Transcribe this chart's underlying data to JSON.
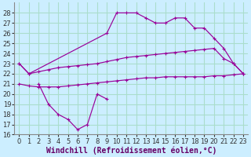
{
  "background_color": "#cceeff",
  "grid_color": "#aaddcc",
  "line_color": "#990099",
  "xlim": [
    -0.5,
    23.5
  ],
  "ylim": [
    16,
    29
  ],
  "xticks": [
    0,
    1,
    2,
    3,
    4,
    5,
    6,
    7,
    8,
    9,
    10,
    11,
    12,
    13,
    14,
    15,
    16,
    17,
    18,
    19,
    20,
    21,
    22,
    23
  ],
  "yticks": [
    16,
    17,
    18,
    19,
    20,
    21,
    22,
    23,
    24,
    25,
    26,
    27,
    28
  ],
  "xlabel": "Windchill (Refroidissement éolien,°C)",
  "xlabel_fontsize": 7.0,
  "tick_fontsize": 6.0,
  "line1": {
    "x": [
      0,
      1,
      9,
      10,
      11,
      12,
      13,
      14,
      15,
      16,
      17,
      18,
      19,
      20,
      21,
      22,
      23
    ],
    "y": [
      23,
      22,
      26,
      28,
      28,
      28,
      27.5,
      27,
      27,
      27.5,
      27.5,
      26.5,
      26.5,
      25.5,
      24.5,
      23,
      22
    ]
  },
  "line2": {
    "x": [
      0,
      1,
      2,
      3,
      4,
      5,
      6,
      7,
      8,
      9,
      10,
      11,
      12,
      13,
      14,
      15,
      16,
      17,
      18,
      19,
      20,
      21,
      22,
      23
    ],
    "y": [
      23,
      22,
      22.2,
      22.4,
      22.6,
      22.7,
      22.8,
      22.9,
      23.0,
      23.2,
      23.4,
      23.6,
      23.7,
      23.8,
      23.9,
      24.0,
      24.1,
      24.2,
      24.3,
      24.4,
      24.5,
      23.5,
      23.0,
      22
    ]
  },
  "line3": {
    "x": [
      0,
      1,
      2,
      3,
      4,
      5,
      6,
      7,
      8,
      9,
      10,
      11,
      12,
      13,
      14,
      15,
      16,
      17,
      18,
      19,
      20,
      21,
      22,
      23
    ],
    "y": [
      21,
      20.8,
      20.7,
      20.7,
      20.7,
      20.8,
      20.9,
      21.0,
      21.1,
      21.2,
      21.3,
      21.4,
      21.5,
      21.6,
      21.6,
      21.7,
      21.7,
      21.7,
      21.7,
      21.7,
      21.8,
      21.8,
      21.9,
      22.0
    ]
  },
  "line4": {
    "x": [
      2,
      3,
      4,
      5,
      6,
      7,
      8,
      9
    ],
    "y": [
      21,
      19,
      18,
      17.5,
      16.5,
      17,
      20,
      19.5
    ]
  }
}
